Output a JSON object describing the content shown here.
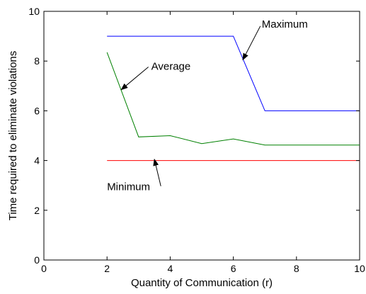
{
  "chart_data": {
    "type": "line",
    "xlabel": "Quantity of Communication (r)",
    "ylabel": "Time required to eliminate violations",
    "xlim": [
      0,
      10
    ],
    "ylim": [
      0,
      10
    ],
    "xticks": [
      0,
      2,
      4,
      6,
      8,
      10
    ],
    "yticks": [
      0,
      2,
      4,
      6,
      8,
      10
    ],
    "grid": false,
    "series": [
      {
        "name": "Maximum",
        "color": "#0000ff",
        "x": [
          2,
          3,
          4,
          5,
          6,
          7,
          8,
          9,
          10
        ],
        "y": [
          9,
          9,
          9,
          9,
          9,
          6,
          6,
          6,
          6
        ]
      },
      {
        "name": "Average",
        "color": "#008000",
        "x": [
          2,
          3,
          4,
          5,
          6,
          7,
          8,
          9,
          10
        ],
        "y": [
          8.35,
          4.95,
          5.0,
          4.68,
          4.87,
          4.62,
          4.62,
          4.62,
          4.62
        ]
      },
      {
        "name": "Minimum",
        "color": "#ff0000",
        "x": [
          2,
          3,
          4,
          5,
          6,
          7,
          8,
          9,
          10
        ],
        "y": [
          4,
          4,
          4,
          4,
          4,
          4,
          4,
          4,
          4
        ]
      }
    ],
    "annotations": [
      {
        "text": "Maximum",
        "text_x": 6.9,
        "text_y": 9.35,
        "arrow_x": 6.3,
        "arrow_y": 8.05
      },
      {
        "text": "Average",
        "text_x": 3.4,
        "text_y": 7.65,
        "arrow_x": 2.45,
        "arrow_y": 6.85
      },
      {
        "text": "Minimum",
        "text_x": 2.0,
        "text_y": 2.8,
        "arrow_x": 3.5,
        "arrow_y": 4.05
      }
    ]
  }
}
